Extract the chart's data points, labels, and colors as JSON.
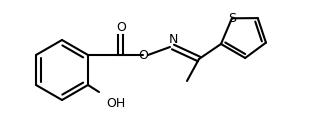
{
  "bg_color": "#ffffff",
  "bond_color": "#000000",
  "text_color": "#000000",
  "lw": 1.5,
  "fs": 9,
  "fig_width": 3.14,
  "fig_height": 1.4,
  "dpi": 100,
  "xlim": [
    0,
    314
  ],
  "ylim": [
    0,
    140
  ]
}
